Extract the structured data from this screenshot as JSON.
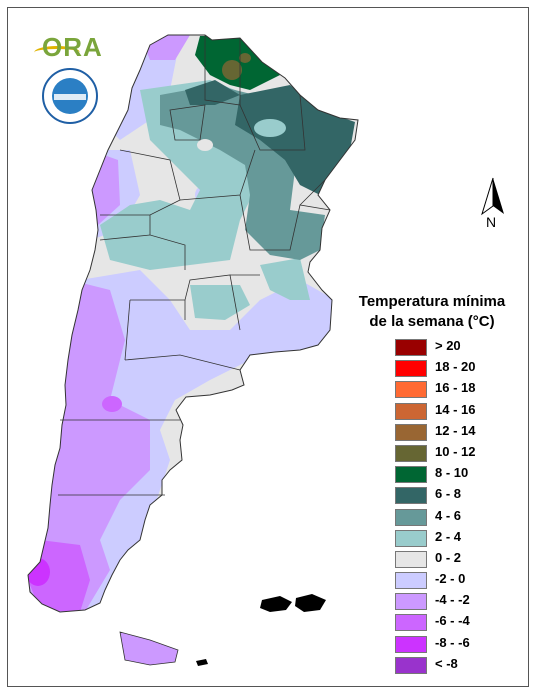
{
  "title": "Temperatura mínima de la semana (°C)",
  "title_lines": [
    "Temperatura mínima",
    "de la semana (°C)"
  ],
  "north_label": "N",
  "logos": {
    "ora": "ORA",
    "seal": "Servicio Meteorológico Nacional"
  },
  "colors": {
    "gt20": "#990000",
    "r18_20": "#ff0000",
    "r16_18": "#ff6a33",
    "r14_16": "#cc6633",
    "r12_14": "#996633",
    "r10_12": "#666633",
    "r8_10": "#006633",
    "r6_8": "#336666",
    "r4_6": "#669999",
    "r2_4": "#99cccc",
    "r0_2": "#e6e6e6",
    "rm2_0": "#ccccff",
    "rm4_m2": "#cc99ff",
    "rm6_m4": "#cc66ff",
    "rm8_m6": "#cc33ff",
    "ltm8": "#9933cc"
  },
  "legend": [
    {
      "label": "> 20",
      "color": "#990000"
    },
    {
      "label": "18 - 20",
      "color": "#ff0000"
    },
    {
      "label": "16 - 18",
      "color": "#ff6a33"
    },
    {
      "label": "14 - 16",
      "color": "#cc6633"
    },
    {
      "label": "12 - 14",
      "color": "#996633"
    },
    {
      "label": "10 - 12",
      "color": "#666633"
    },
    {
      "label": "8 - 10",
      "color": "#006633"
    },
    {
      "label": "6 - 8",
      "color": "#336666"
    },
    {
      "label": "4 - 6",
      "color": "#669999"
    },
    {
      "label": "2 - 4",
      "color": "#99cccc"
    },
    {
      "label": "0 - 2",
      "color": "#e6e6e6"
    },
    {
      "label": "-2 - 0",
      "color": "#ccccff"
    },
    {
      "label": "-4 - -2",
      "color": "#cc99ff"
    },
    {
      "label": "-6 - -4",
      "color": "#cc66ff"
    },
    {
      "label": "-8 - -6",
      "color": "#cc33ff"
    },
    {
      "label": "< -8",
      "color": "#9933cc"
    }
  ]
}
